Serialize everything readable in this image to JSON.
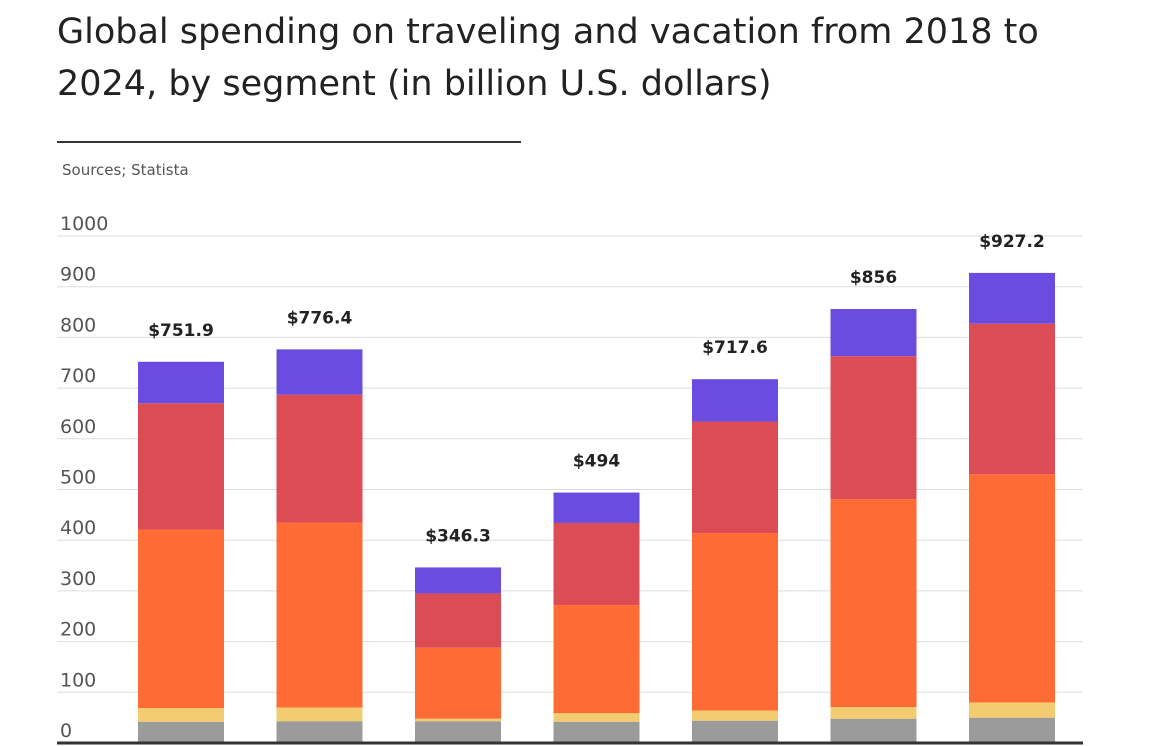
{
  "chart_data": {
    "type": "bar",
    "stacked": true,
    "title": "Global spending on traveling and vacation from 2018 to 2024, by segment (in billion U.S. dollars)",
    "source": "Sources; Statista",
    "ylim": [
      0,
      1000
    ],
    "yticks": [
      "0",
      "100",
      "200",
      "300",
      "400",
      "500",
      "600",
      "700",
      "800",
      "900",
      "1000"
    ],
    "grid": true,
    "legend": "none",
    "categories": [
      "",
      "",
      "",
      "",
      "",
      "",
      ""
    ],
    "totals_labels": [
      "$751.9",
      "$776.4",
      "$346.3",
      "$494",
      "$717.6",
      "$856",
      "$927.2"
    ],
    "totals": [
      751.9,
      776.4,
      346.3,
      494,
      717.6,
      856,
      927.2
    ],
    "series": [
      {
        "color": "#9b9b9b",
        "values": [
          42,
          43,
          43,
          42,
          44,
          48,
          50
        ]
      },
      {
        "color": "#f2cc6f",
        "values": [
          27,
          27,
          5,
          17,
          20,
          23,
          30
        ]
      },
      {
        "color": "#ff6b35",
        "values": [
          352,
          365,
          140,
          213,
          350,
          410,
          450
        ]
      },
      {
        "color": "#dc4c55",
        "values": [
          249,
          252,
          107,
          162,
          220,
          282,
          297
        ]
      },
      {
        "color": "#6a4ce0",
        "values": [
          81.9,
          89.4,
          51.3,
          60,
          83.6,
          93,
          100.2
        ]
      }
    ]
  }
}
